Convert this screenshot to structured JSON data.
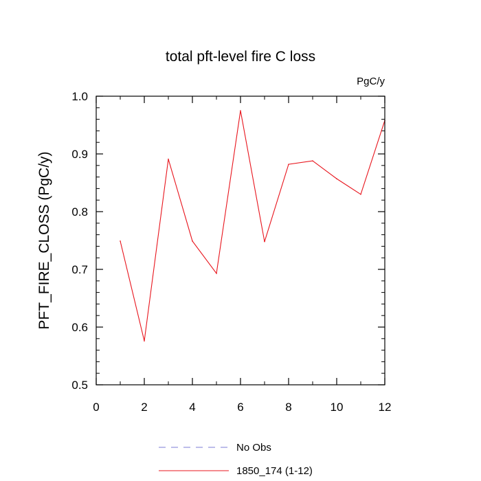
{
  "chart_data": {
    "type": "line",
    "title": "total pft-level fire C loss",
    "units": "PgC/y",
    "xlabel": "",
    "ylabel": "PFT_FIRE_CLOSS  (PgC/y)",
    "xlim": [
      0,
      12
    ],
    "ylim": [
      0.5,
      1.0
    ],
    "x_ticks": [
      0,
      2,
      4,
      6,
      8,
      10,
      12
    ],
    "x_tick_labels": [
      "0",
      "2",
      "4",
      "6",
      "8",
      "10",
      "12"
    ],
    "y_ticks": [
      0.5,
      0.6,
      0.7,
      0.8,
      0.9,
      1.0
    ],
    "y_tick_labels": [
      "0.5",
      "0.6",
      "0.7",
      "0.8",
      "0.9",
      "1.0"
    ],
    "grid": false,
    "legend_position": "bottom",
    "series": [
      {
        "name": "No Obs",
        "style": "dashed",
        "color": "#7b7bd6",
        "x": [],
        "values": []
      },
      {
        "name": "1850_174 (1-12)",
        "style": "solid",
        "color": "#e8141c",
        "x": [
          1,
          2,
          3,
          4,
          5,
          6,
          7,
          8,
          9,
          10,
          11,
          12
        ],
        "values": [
          0.749,
          0.576,
          0.891,
          0.749,
          0.693,
          0.975,
          0.748,
          0.882,
          0.888,
          0.857,
          0.83,
          0.958
        ]
      }
    ]
  }
}
